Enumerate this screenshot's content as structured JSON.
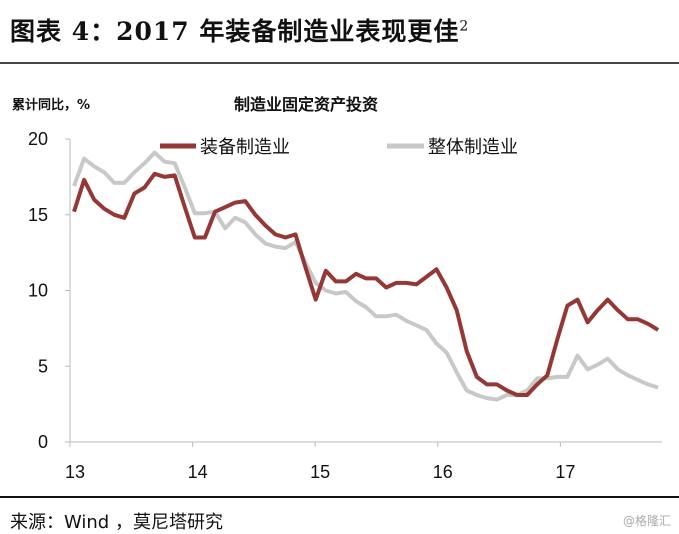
{
  "header": {
    "title": "图表 4：2017 年装备制造业表现更佳",
    "title_sup": "2"
  },
  "footer": {
    "source": "来源：Wind ，莫尼塔研究",
    "watermark": "@格隆汇"
  },
  "chart_data": {
    "type": "line",
    "title": "制造业固定资产投资",
    "ylabel": "累计同比，%",
    "xlabel": "",
    "ylim": [
      0,
      20
    ],
    "yticks": [
      "0",
      "5",
      "10",
      "15",
      "20"
    ],
    "xticks": [
      "13",
      "14",
      "15",
      "16",
      "17"
    ],
    "x_start": "2013-01",
    "x_frequency": "monthly",
    "grid": false,
    "legend": "top",
    "series": [
      {
        "name": "装备制造业",
        "color": "#953735",
        "values": [
          15.2,
          17.3,
          16.0,
          15.4,
          15.0,
          14.8,
          16.4,
          16.8,
          17.7,
          17.5,
          17.6,
          15.5,
          13.5,
          13.5,
          15.2,
          15.5,
          15.8,
          15.9,
          15.0,
          14.3,
          13.7,
          13.5,
          13.7,
          11.5,
          9.4,
          11.3,
          10.6,
          10.6,
          11.1,
          10.8,
          10.8,
          10.2,
          10.5,
          10.5,
          10.4,
          10.9,
          11.4,
          10.2,
          8.7,
          6.0,
          4.3,
          3.8,
          3.8,
          3.4,
          3.1,
          3.1,
          3.8,
          4.4,
          6.8,
          9.0,
          9.4,
          7.9,
          8.7,
          9.4,
          8.7,
          8.1,
          8.1,
          7.8,
          7.4
        ]
      },
      {
        "name": "整体制造业",
        "color": "#c8c8c8",
        "values": [
          16.9,
          18.7,
          18.2,
          17.8,
          17.1,
          17.1,
          17.8,
          18.4,
          19.1,
          18.5,
          18.4,
          16.8,
          15.1,
          15.1,
          15.2,
          14.1,
          14.8,
          14.5,
          13.7,
          13.1,
          12.9,
          12.8,
          13.2,
          11.8,
          10.5,
          10.0,
          9.8,
          9.9,
          9.3,
          8.9,
          8.3,
          8.3,
          8.4,
          8.0,
          7.7,
          7.4,
          6.5,
          5.9,
          4.6,
          3.4,
          3.1,
          2.9,
          2.8,
          3.1,
          3.1,
          3.4,
          4.2,
          4.2,
          4.3,
          4.3,
          5.7,
          4.8,
          5.1,
          5.5,
          4.8,
          4.4,
          4.1,
          3.8,
          3.6
        ]
      }
    ]
  }
}
